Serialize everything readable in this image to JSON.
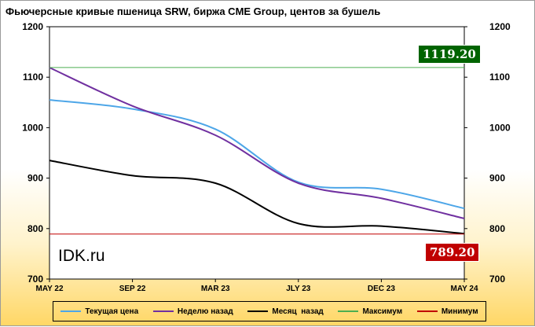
{
  "title": "Фьючерсные кривые пшеница SRW, биржа CME Group, центов за бушель",
  "watermark": "IDK.ru",
  "badges": {
    "max": {
      "label": "1119.20",
      "color": "#006400"
    },
    "min": {
      "label": "789.20",
      "color": "#c00000"
    }
  },
  "chart_data": {
    "type": "line",
    "categories": [
      "MAY 22",
      "SEP 22",
      "MAR 23",
      "JLY 23",
      "DEC 23",
      "MAY 24"
    ],
    "y_left_ticks": [
      700,
      800,
      900,
      1000,
      1100,
      1200
    ],
    "y_right_ticks": [
      700,
      800,
      900,
      1000,
      1100,
      1200
    ],
    "ylim": [
      700,
      1200
    ],
    "grid": false,
    "legend_position": "bottom",
    "series": [
      {
        "name": "Текущая цена",
        "color": "#4da6e8",
        "values": [
          1055,
          1037,
          997,
          892,
          878,
          840
        ]
      },
      {
        "name": "Неделю назад",
        "color": "#7030a0",
        "values": [
          1119,
          1043,
          985,
          890,
          860,
          820
        ]
      },
      {
        "name": "Месяц  назад",
        "color": "#000000",
        "values": [
          935,
          905,
          890,
          810,
          805,
          790
        ]
      },
      {
        "name": "Максимум",
        "color": "#4caf50",
        "values": [
          1119.2,
          1119.2,
          1119.2,
          1119.2,
          1119.2,
          1119.2
        ]
      },
      {
        "name": "Минимум",
        "color": "#c00000",
        "values": [
          789.2,
          789.2,
          789.2,
          789.2,
          789.2,
          789.2
        ]
      }
    ]
  }
}
